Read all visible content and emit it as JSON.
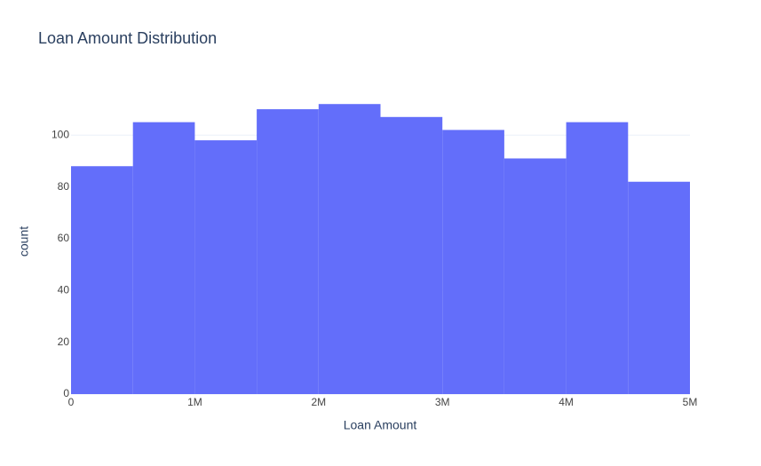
{
  "chart_data": {
    "type": "histogram",
    "title": "Loan Amount Distribution",
    "x_label": "Loan Amount",
    "y_label": "count",
    "bins": [
      0,
      500000,
      1000000,
      1500000,
      2000000,
      2500000,
      3000000,
      3500000,
      4000000,
      4500000,
      5000000
    ],
    "values": [
      88,
      105,
      98,
      110,
      112,
      107,
      102,
      91,
      105,
      82
    ],
    "color": "#636efa",
    "xlim": [
      0,
      5000000
    ],
    "xticks": [
      0,
      {
        "value": 1000000,
        "label": "1M"
      },
      {
        "value": 2000000,
        "label": "2M"
      },
      {
        "value": 3000000,
        "label": "3M"
      },
      {
        "value": 4000000,
        "label": "4M"
      },
      {
        "value": 5000000,
        "label": "5M"
      }
    ],
    "ylim": [
      0,
      117.9
    ],
    "yticks": [
      0,
      20,
      40,
      60,
      80,
      100
    ],
    "grid": true
  }
}
